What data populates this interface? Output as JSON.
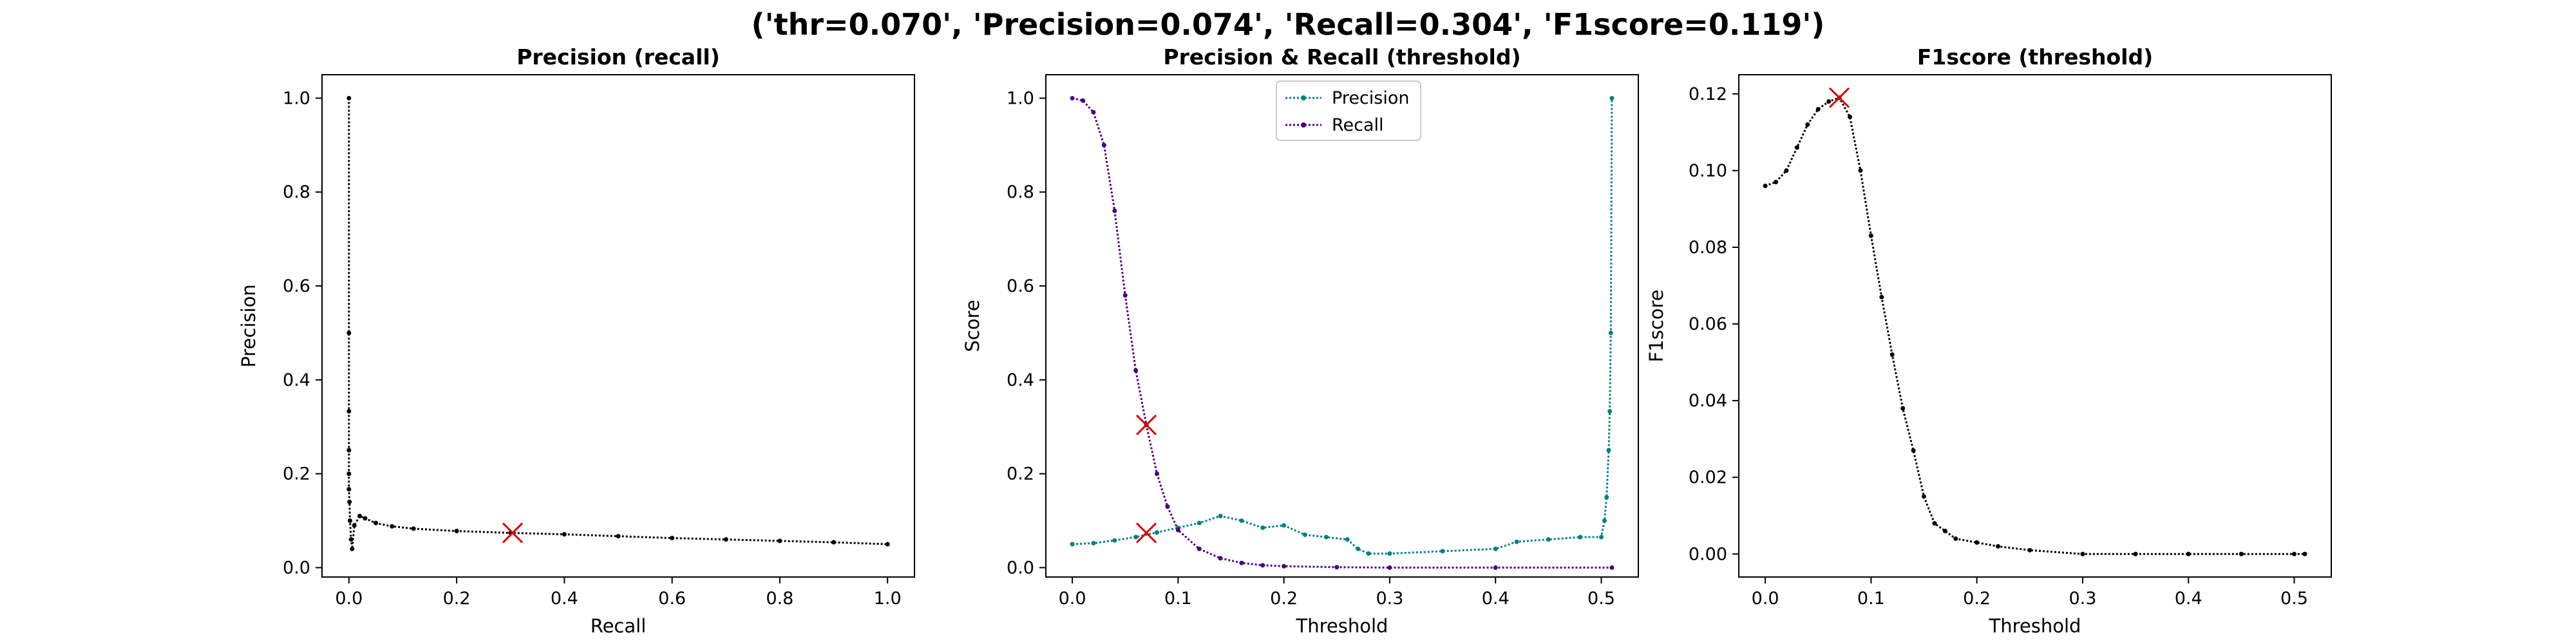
{
  "figure": {
    "title": "('thr=0.070', 'Precision=0.074', 'Recall=0.304', 'F1score=0.119')"
  },
  "chart_data": [
    {
      "type": "line",
      "title": "Precision (recall)",
      "xlabel": "Recall",
      "ylabel": "Precision",
      "xlim": [
        -0.05,
        1.05
      ],
      "ylim": [
        -0.02,
        1.05
      ],
      "xticks": [
        0.0,
        0.2,
        0.4,
        0.6,
        0.8,
        1.0
      ],
      "xtick_labels": [
        "0.0",
        "0.2",
        "0.4",
        "0.6",
        "0.8",
        "1.0"
      ],
      "yticks": [
        0.0,
        0.2,
        0.4,
        0.6,
        0.8,
        1.0
      ],
      "ytick_labels": [
        "0.0",
        "0.2",
        "0.4",
        "0.6",
        "0.8",
        "1.0"
      ],
      "series": [
        {
          "color": "#000000",
          "x": [
            0.0,
            0.0,
            0.0,
            0.0,
            0.0,
            0.0,
            0.001,
            0.002,
            0.004,
            0.006,
            0.01,
            0.02,
            0.03,
            0.05,
            0.08,
            0.12,
            0.2,
            0.3,
            0.4,
            0.5,
            0.6,
            0.7,
            0.8,
            0.9,
            1.0
          ],
          "y": [
            1.0,
            0.5,
            0.333,
            0.25,
            0.2,
            0.167,
            0.14,
            0.1,
            0.06,
            0.04,
            0.09,
            0.11,
            0.105,
            0.095,
            0.088,
            0.083,
            0.078,
            0.074,
            0.071,
            0.067,
            0.063,
            0.06,
            0.057,
            0.054,
            0.05
          ]
        }
      ],
      "markers": [
        {
          "x": 0.304,
          "y": 0.074,
          "color": "#e00000"
        }
      ]
    },
    {
      "type": "line",
      "title": "Precision & Recall (threshold)",
      "xlabel": "Threshold",
      "ylabel": "Score",
      "xlim": [
        -0.025,
        0.535
      ],
      "ylim": [
        -0.02,
        1.05
      ],
      "xticks": [
        0.0,
        0.1,
        0.2,
        0.3,
        0.4,
        0.5
      ],
      "xtick_labels": [
        "0.0",
        "0.1",
        "0.2",
        "0.3",
        "0.4",
        "0.5"
      ],
      "yticks": [
        0.0,
        0.2,
        0.4,
        0.6,
        0.8,
        1.0
      ],
      "ytick_labels": [
        "0.0",
        "0.2",
        "0.4",
        "0.6",
        "0.8",
        "1.0"
      ],
      "legend": {
        "position": "top-center"
      },
      "series": [
        {
          "name": "Precision",
          "color": "#008080",
          "x": [
            0.0,
            0.02,
            0.04,
            0.06,
            0.08,
            0.1,
            0.12,
            0.14,
            0.16,
            0.18,
            0.2,
            0.22,
            0.24,
            0.26,
            0.27,
            0.28,
            0.3,
            0.35,
            0.4,
            0.42,
            0.45,
            0.48,
            0.5,
            0.503,
            0.505,
            0.507,
            0.508,
            0.509,
            0.51
          ],
          "y": [
            0.05,
            0.052,
            0.058,
            0.065,
            0.075,
            0.085,
            0.095,
            0.11,
            0.1,
            0.085,
            0.09,
            0.07,
            0.065,
            0.06,
            0.04,
            0.03,
            0.03,
            0.035,
            0.04,
            0.055,
            0.06,
            0.065,
            0.065,
            0.1,
            0.15,
            0.25,
            0.333,
            0.5,
            1.0
          ]
        },
        {
          "name": "Recall",
          "color": "#4b0082",
          "x": [
            0.0,
            0.01,
            0.02,
            0.03,
            0.04,
            0.05,
            0.06,
            0.07,
            0.08,
            0.09,
            0.1,
            0.12,
            0.14,
            0.16,
            0.18,
            0.2,
            0.25,
            0.3,
            0.4,
            0.51
          ],
          "y": [
            1.0,
            0.995,
            0.97,
            0.9,
            0.76,
            0.58,
            0.42,
            0.304,
            0.2,
            0.13,
            0.08,
            0.04,
            0.02,
            0.01,
            0.005,
            0.003,
            0.001,
            0.0,
            0.0,
            0.0
          ]
        }
      ],
      "markers": [
        {
          "x": 0.07,
          "y": 0.304,
          "color": "#e00000"
        },
        {
          "x": 0.07,
          "y": 0.074,
          "color": "#e00000"
        }
      ]
    },
    {
      "type": "line",
      "title": "F1score (threshold)",
      "xlabel": "Threshold",
      "ylabel": "F1score",
      "xlim": [
        -0.025,
        0.535
      ],
      "ylim": [
        -0.006,
        0.125
      ],
      "xticks": [
        0.0,
        0.1,
        0.2,
        0.3,
        0.4,
        0.5
      ],
      "xtick_labels": [
        "0.0",
        "0.1",
        "0.2",
        "0.3",
        "0.4",
        "0.5"
      ],
      "yticks": [
        0.0,
        0.02,
        0.04,
        0.06,
        0.08,
        0.1,
        0.12
      ],
      "ytick_labels": [
        "0.00",
        "0.02",
        "0.04",
        "0.06",
        "0.08",
        "0.10",
        "0.12"
      ],
      "series": [
        {
          "color": "#000000",
          "x": [
            0.0,
            0.01,
            0.02,
            0.03,
            0.04,
            0.05,
            0.06,
            0.07,
            0.08,
            0.09,
            0.1,
            0.11,
            0.12,
            0.13,
            0.14,
            0.15,
            0.16,
            0.17,
            0.18,
            0.2,
            0.22,
            0.25,
            0.3,
            0.35,
            0.4,
            0.45,
            0.5,
            0.51
          ],
          "y": [
            0.096,
            0.097,
            0.1,
            0.106,
            0.112,
            0.116,
            0.118,
            0.119,
            0.114,
            0.1,
            0.083,
            0.067,
            0.052,
            0.038,
            0.027,
            0.015,
            0.008,
            0.006,
            0.004,
            0.003,
            0.002,
            0.001,
            0.0,
            0.0,
            0.0,
            0.0,
            0.0,
            0.0
          ]
        }
      ],
      "markers": [
        {
          "x": 0.07,
          "y": 0.119,
          "color": "#e00000"
        }
      ]
    }
  ]
}
